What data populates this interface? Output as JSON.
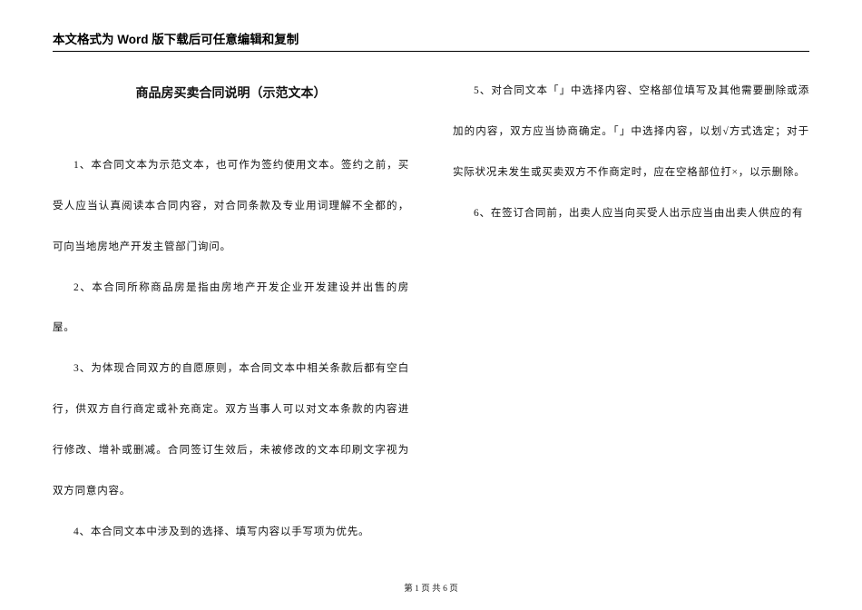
{
  "header_text": "本文格式为 Word 版下载后可任意编辑和复制",
  "doc_title": "商品房买卖合同说明（示范文本）",
  "paragraphs": [
    "1、本合同文本为示范文本，也可作为签约使用文本。签约之前，买受人应当认真阅读本合同内容，对合同条款及专业用词理解不全都的，可向当地房地产开发主管部门询问。",
    "2、本合同所称商品房是指由房地产开发企业开发建设并出售的房屋。",
    "3、为体现合同双方的自愿原则，本合同文本中相关条款后都有空白行，供双方自行商定或补充商定。双方当事人可以对文本条款的内容进行修改、增补或删减。合同签订生效后，未被修改的文本印刷文字视为双方同意内容。",
    "4、本合同文本中涉及到的选择、填写内容以手写项为优先。",
    "5、对合同文本「」中选择内容、空格部位填写及其他需要删除或添加的内容，双方应当协商确定。「」中选择内容，以划√方式选定；对于实际状况未发生或买卖双方不作商定时，应在空格部位打×，以示删除。",
    "6、在签订合同前，出卖人应当向买受人出示应当由出卖人供应的有"
  ],
  "footer": {
    "prefix": "第 ",
    "current": "1",
    "mid": " 页 共 ",
    "total": "6",
    "suffix": " 页"
  }
}
